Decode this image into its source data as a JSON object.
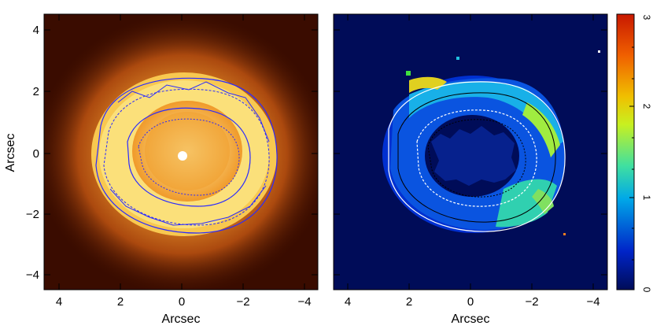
{
  "left_panel": {
    "xlabel": "Arcsec",
    "ylabel": "Arcsec",
    "x_ticks": [
      "4",
      "2",
      "0",
      "−2",
      "−4"
    ],
    "y_ticks": [
      "4",
      "2",
      "0",
      "−2",
      "−4"
    ],
    "image_colormap": "heat",
    "contour_color": "#2a2aff"
  },
  "right_panel": {
    "xlabel": "Arcsec",
    "x_ticks": [
      "4",
      "2",
      "0",
      "−2",
      "−4"
    ],
    "image_colormap": "jet",
    "contour_colors": [
      "#ffffff",
      "#000000"
    ]
  },
  "colorbar": {
    "ticks": [
      "0",
      "1",
      "2",
      "3"
    ],
    "range": [
      0,
      3
    ],
    "colors": [
      "#000c58",
      "#0024c8",
      "#00a8e8",
      "#40e0a0",
      "#c8f020",
      "#f0c000",
      "#f06000",
      "#c81800"
    ]
  }
}
